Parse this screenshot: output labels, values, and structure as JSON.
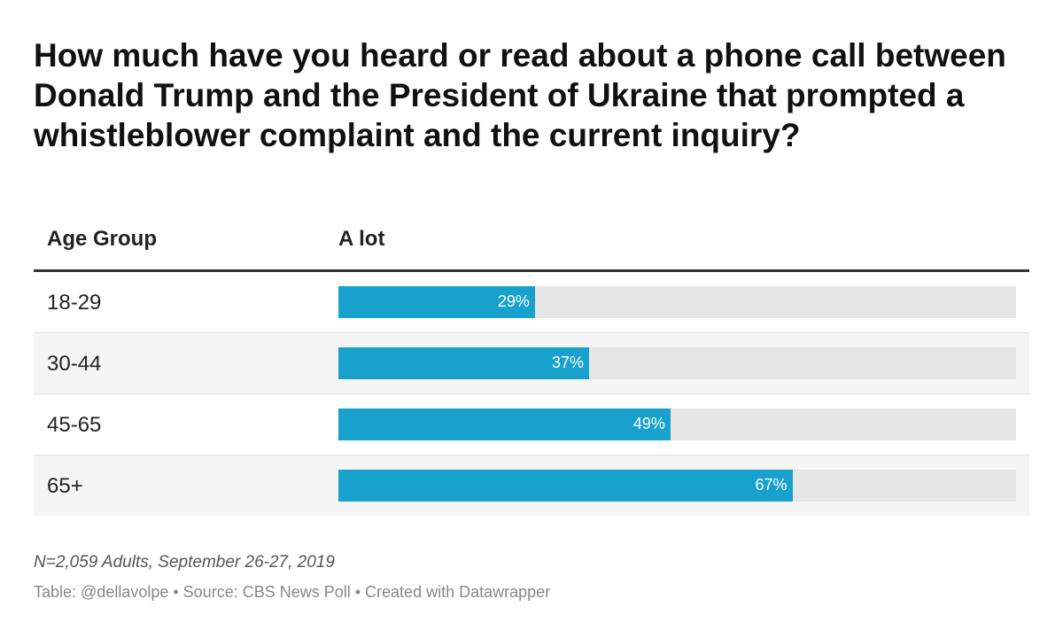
{
  "title": "How much have you heard or read about a phone call between Donald Trump and the President of Ukraine that prompted a whistleblower complaint and the current inquiry?",
  "colors": {
    "bar": "#18a1cd",
    "bar_background": "#e6e6e6",
    "row_shade": "#f5f5f5"
  },
  "chart_data": {
    "type": "bar",
    "title": "How much have you heard or read about a phone call between Donald Trump and the President of Ukraine that prompted a whistleblower complaint and the current inquiry?",
    "xlabel": "Age Group",
    "ylabel": "A lot",
    "unit": "%",
    "ylim": [
      0,
      100
    ],
    "categories": [
      "18-29",
      "30-44",
      "45-65",
      "65+"
    ],
    "values": [
      29,
      37,
      49,
      67
    ],
    "labels": [
      "29%",
      "37%",
      "49%",
      "67%"
    ]
  },
  "table": {
    "col_label": "Age Group",
    "col_value": "A lot"
  },
  "note": "N=2,059 Adults, September 26-27, 2019",
  "footer": "Table: @dellavolpe • Source: CBS News Poll • Created with Datawrapper"
}
